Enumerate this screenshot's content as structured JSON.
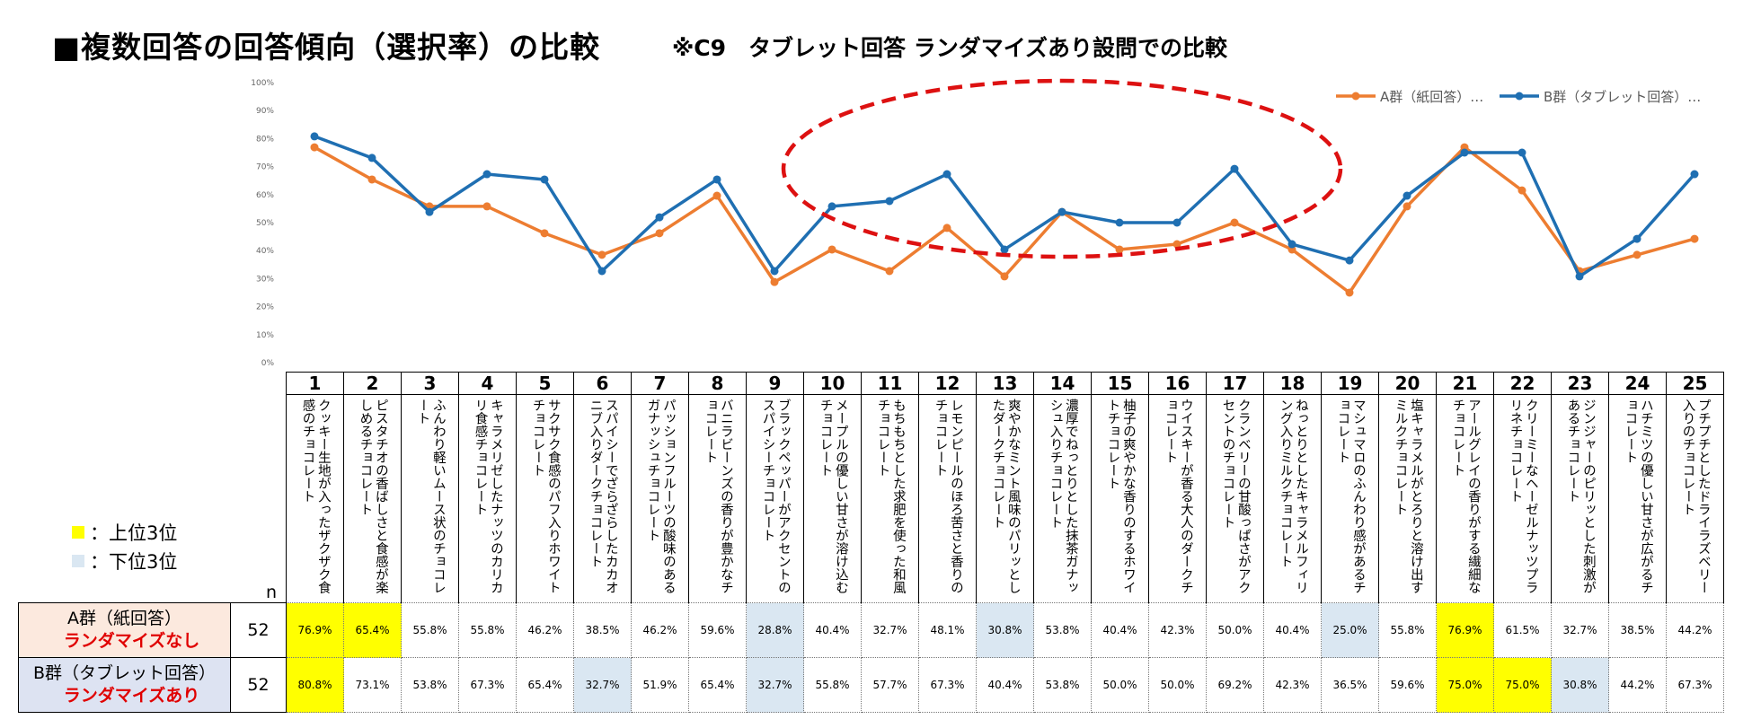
{
  "header": {
    "title": "■複数回答の回答傾向（選択率）の比較",
    "subtitle": "※C9　タブレット回答 ランダマイズあり設問での比較"
  },
  "legend_notes": [
    {
      "label": "：上位3位",
      "color": "#ffff00"
    },
    {
      "label": "：下位3位",
      "color": "#dae7f2"
    }
  ],
  "colors": {
    "series_a": "#ed7d31",
    "series_b": "#1f6fb2",
    "ellipse": "#dd1111"
  },
  "table": {
    "n_label": "n",
    "groups": [
      {
        "name": "A群（紙回答）",
        "sub": "ランダマイズなし",
        "n": "52",
        "bg": "#fce9de"
      },
      {
        "name": "B群（タブレット回答）",
        "sub": "ランダマイズあり",
        "n": "52",
        "bg": "#dde3f2"
      }
    ]
  },
  "chart_data": {
    "type": "line",
    "ylim": [
      0,
      100
    ],
    "yticks": [
      "0%",
      "10%",
      "20%",
      "30%",
      "40%",
      "50%",
      "60%",
      "70%",
      "80%",
      "90%",
      "100%"
    ],
    "categories": [
      "1",
      "2",
      "3",
      "4",
      "5",
      "6",
      "7",
      "8",
      "9",
      "10",
      "11",
      "12",
      "13",
      "14",
      "15",
      "16",
      "17",
      "18",
      "19",
      "20",
      "21",
      "22",
      "23",
      "24",
      "25"
    ],
    "descriptions": [
      "クッキー生地が入ったザクザク食感のチョコレート",
      "ピスタチオの香ばしさと食感が楽しめるチョコレート",
      "ふんわり軽いムース状のチョコレート",
      "キャラメリゼしたナッツのカリカリ食感チョコレート",
      "サクサク食感のパフ入りホワイトチョコレート",
      "スパイシーでざらざらしたカカオニブ入りダークチョコレート",
      "パッションフルーツの酸味のあるガナッシュチョコレート",
      "バニラビーンズの香りが豊かなチョコレート",
      "ブラックペッパーがアクセントのスパイシーチョコレート",
      "メープルの優しい甘さが溶け込むチョコレート",
      "もちもちとした求肥を使った和風チョコレート",
      "レモンピールのほろ苦さと香りのチョコレート",
      "爽やかなミント風味のパリッとしたダークチョコレート",
      "濃厚でねっとりとした抹茶ガナッシュ入りチョコレート",
      "柚子の爽やかな香りのするホワイトチョコレート",
      "ウイスキーが香る大人のダークチョコレート",
      "クランベリーの甘酸っぱさがアクセントのチョコレート",
      "ねっとりとしたキャラメルフィリング入りミルクチョコレート",
      "マシュマロのふんわり感があるチョコレート",
      "塩キャラメルがとろりと溶け出すミルクチョコレート",
      "アールグレイの香りがする繊細なチョコレート",
      "クリーミーなヘーゼルナッツプラリネチョコレート",
      "ジンジャーのピリッとした刺激があるチョコレート",
      "ハチミツの優しい甘さが広がるチョコレート",
      "プチプチとしたドライラズベリー入りのチョコレート"
    ],
    "series": [
      {
        "name": "A群（紙回答）…",
        "values": [
          76.9,
          65.4,
          55.8,
          55.8,
          46.2,
          38.5,
          46.2,
          59.6,
          28.8,
          40.4,
          32.7,
          48.1,
          30.8,
          53.8,
          40.4,
          42.3,
          50.0,
          40.4,
          25.0,
          55.8,
          76.9,
          61.5,
          32.7,
          38.5,
          44.2
        ],
        "labels": [
          "76.9%",
          "65.4%",
          "55.8%",
          "55.8%",
          "46.2%",
          "38.5%",
          "46.2%",
          "59.6%",
          "28.8%",
          "40.4%",
          "32.7%",
          "48.1%",
          "30.8%",
          "53.8%",
          "40.4%",
          "42.3%",
          "50.0%",
          "40.4%",
          "25.0%",
          "55.8%",
          "76.9%",
          "61.5%",
          "32.7%",
          "38.5%",
          "44.2%"
        ],
        "highlight": [
          "top",
          "top",
          "",
          "",
          "",
          "",
          "",
          "",
          "bottom",
          "",
          "",
          "",
          "bottom",
          "",
          "",
          "",
          "",
          "",
          "bottom",
          "",
          "top",
          "",
          "",
          "",
          ""
        ]
      },
      {
        "name": "B群（タブレット回答）…",
        "values": [
          80.8,
          73.1,
          53.8,
          67.3,
          65.4,
          32.7,
          51.9,
          65.4,
          32.7,
          55.8,
          57.7,
          67.3,
          40.4,
          53.8,
          50.0,
          50.0,
          69.2,
          42.3,
          36.5,
          59.6,
          75.0,
          75.0,
          30.8,
          44.2,
          67.3
        ],
        "labels": [
          "80.8%",
          "73.1%",
          "53.8%",
          "67.3%",
          "65.4%",
          "32.7%",
          "51.9%",
          "65.4%",
          "32.7%",
          "55.8%",
          "57.7%",
          "67.3%",
          "40.4%",
          "53.8%",
          "50.0%",
          "50.0%",
          "69.2%",
          "42.3%",
          "36.5%",
          "59.6%",
          "75.0%",
          "75.0%",
          "30.8%",
          "44.2%",
          "67.3%"
        ],
        "highlight": [
          "top",
          "",
          "",
          "",
          "",
          "bottom",
          "",
          "",
          "bottom",
          "",
          "",
          "",
          "",
          "",
          "",
          "",
          "",
          "",
          "",
          "",
          "top",
          "top",
          "bottom",
          "",
          ""
        ]
      }
    ]
  }
}
